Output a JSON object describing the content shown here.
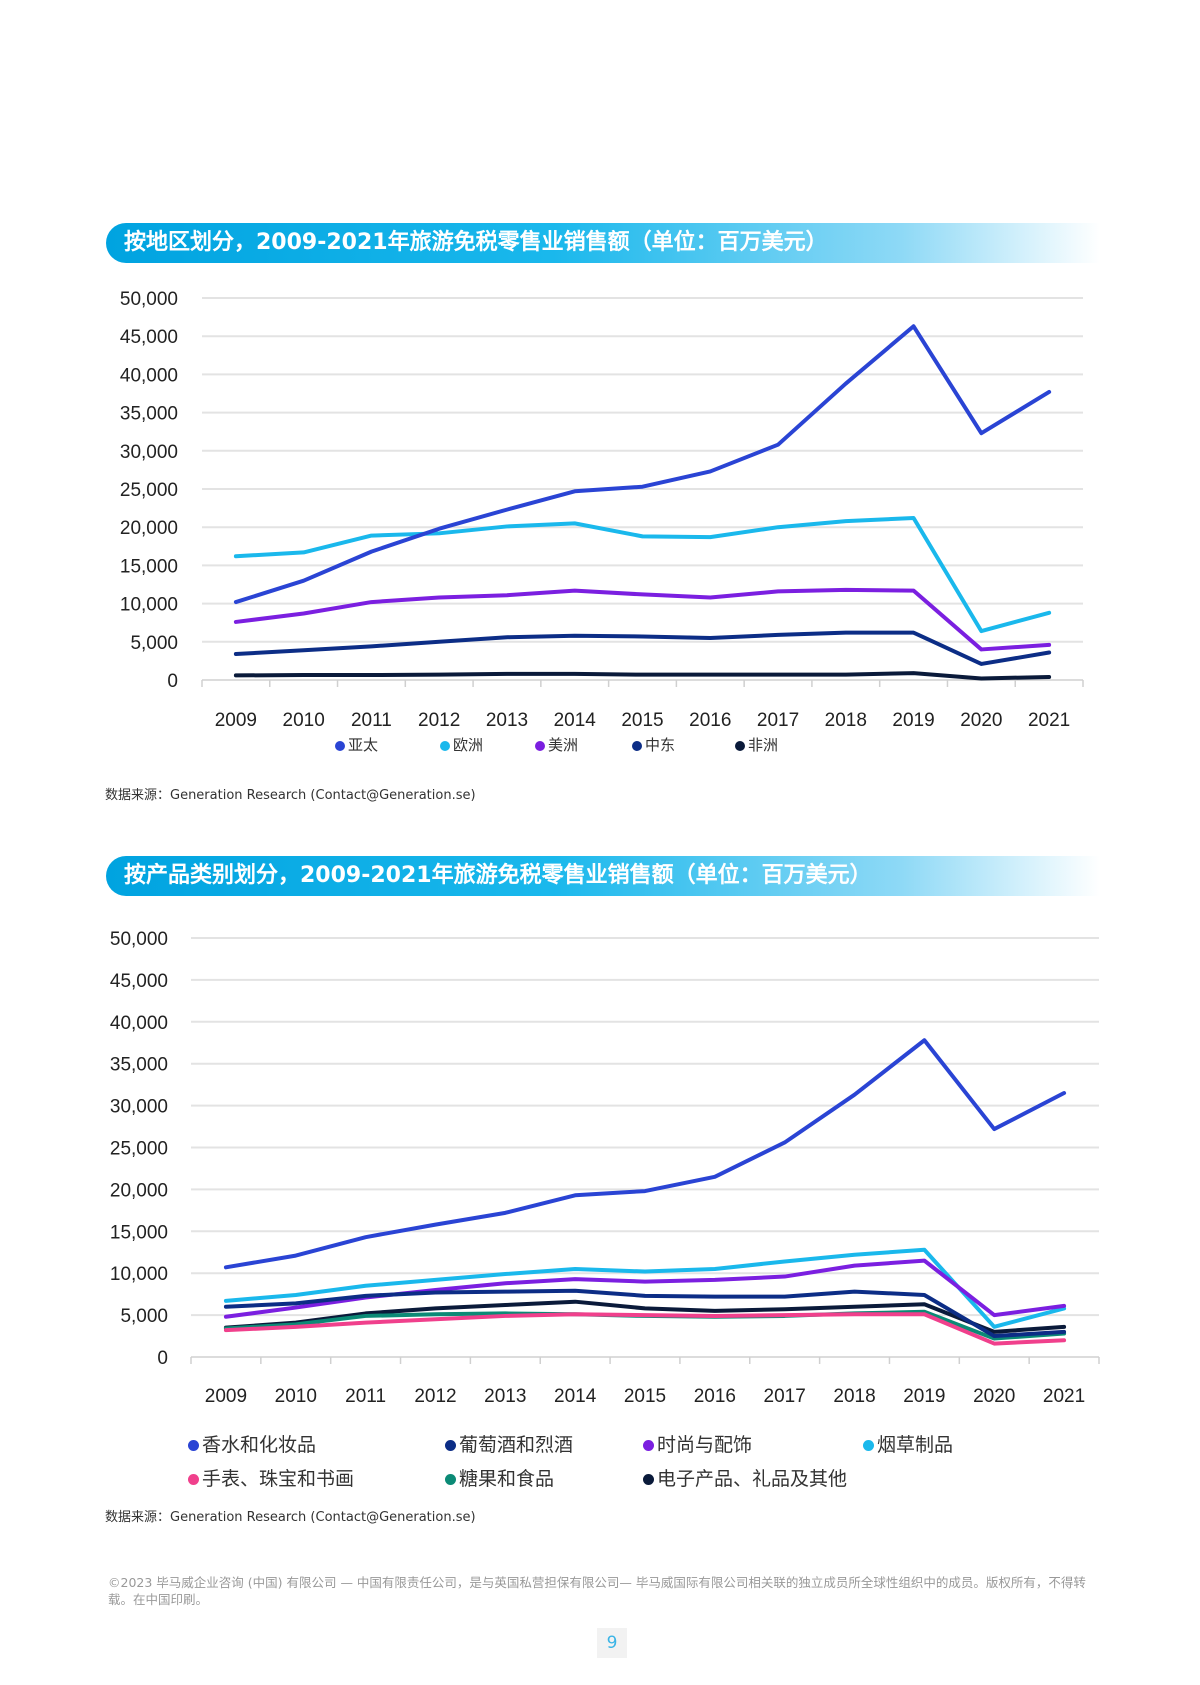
{
  "charts_titles": [
    "按地区划分，2009-2021年旅游免税零售业销售额（单位：百万美元）",
    "按产品类别划分，2009-2021年旅游免税零售业销售额（单位：百万美元）"
  ],
  "sources": [
    "数据来源：Generation Research (Contact@Generation.se)",
    "数据来源：Generation Research (Contact@Generation.se)"
  ],
  "footer": "©2023 毕马威企业咨询 (中国) 有限公司 — 中国有限责任公司，是与英国私营担保有限公司— 毕马威国际有限公司相关联的独立成员所全球性组织中的成员。版权所有，不得转载。在中国印刷。",
  "page_number": "9",
  "chart_data": [
    {
      "type": "line",
      "title": "按地区划分，2009-2021年旅游免税零售业销售额（单位：百万美元）",
      "categories": [
        "2009",
        "2010",
        "2011",
        "2012",
        "2013",
        "2014",
        "2015",
        "2016",
        "2017",
        "2018",
        "2019",
        "2020",
        "2021"
      ],
      "yticks": [
        "0",
        "5,000",
        "10,000",
        "15,000",
        "20,000",
        "25,000",
        "30,000",
        "35,000",
        "40,000",
        "45,000",
        "50,000"
      ],
      "ylim": [
        0,
        50000
      ],
      "grid": true,
      "legend": "bottom",
      "series": [
        {
          "name": "亚太",
          "color": "#2a44d4",
          "values": [
            10200,
            13000,
            16800,
            19800,
            22300,
            24700,
            25300,
            27300,
            30800,
            38800,
            46300,
            32300,
            37700
          ]
        },
        {
          "name": "欧洲",
          "color": "#1ab8ec",
          "values": [
            16200,
            16700,
            18900,
            19200,
            20100,
            20500,
            18800,
            18700,
            20000,
            20800,
            21200,
            6400,
            8800
          ]
        },
        {
          "name": "美洲",
          "color": "#7b1fe0",
          "values": [
            7600,
            8700,
            10200,
            10800,
            11100,
            11700,
            11200,
            10800,
            11600,
            11800,
            11700,
            4000,
            4600
          ]
        },
        {
          "name": "中东",
          "color": "#0c2d86",
          "values": [
            3400,
            3900,
            4400,
            5000,
            5600,
            5800,
            5700,
            5500,
            5900,
            6200,
            6200,
            2100,
            3600
          ]
        },
        {
          "name": "非洲",
          "color": "#0a1a3a",
          "values": [
            600,
            650,
            650,
            700,
            800,
            800,
            700,
            700,
            700,
            700,
            900,
            200,
            400
          ]
        }
      ]
    },
    {
      "type": "line",
      "title": "按产品类别划分，2009-2021年旅游免税零售业销售额（单位：百万美元）",
      "categories": [
        "2009",
        "2010",
        "2011",
        "2012",
        "2013",
        "2014",
        "2015",
        "2016",
        "2017",
        "2018",
        "2019",
        "2020",
        "2021"
      ],
      "yticks": [
        "0",
        "5,000",
        "10,000",
        "15,000",
        "20,000",
        "25,000",
        "30,000",
        "35,000",
        "40,000",
        "45,000",
        "50,000"
      ],
      "ylim": [
        0,
        50000
      ],
      "grid": true,
      "legend": "bottom",
      "series": [
        {
          "name": "香水和化妆品",
          "color": "#2a44d4",
          "values": [
            10700,
            12100,
            14300,
            15800,
            17200,
            19300,
            19800,
            21500,
            25600,
            31300,
            37800,
            27200,
            31500
          ]
        },
        {
          "name": "葡萄酒和烈酒",
          "color": "#0c2d86",
          "values": [
            6000,
            6400,
            7300,
            7700,
            7800,
            7900,
            7300,
            7200,
            7200,
            7800,
            7400,
            2500,
            3000
          ]
        },
        {
          "name": "时尚与配饰",
          "color": "#7b1fe0",
          "values": [
            4800,
            5900,
            7100,
            8000,
            8800,
            9300,
            9000,
            9200,
            9600,
            10900,
            11500,
            5000,
            6100
          ]
        },
        {
          "name": "烟草制品",
          "color": "#1ab8ec",
          "values": [
            6700,
            7400,
            8500,
            9200,
            9900,
            10500,
            10200,
            10500,
            11400,
            12200,
            12800,
            3600,
            5800
          ]
        },
        {
          "name": "手表、珠宝和书画",
          "color": "#f0408c",
          "values": [
            3200,
            3600,
            4100,
            4500,
            4900,
            5100,
            5000,
            4900,
            5000,
            5100,
            5100,
            1600,
            2000
          ]
        },
        {
          "name": "糖果和食品",
          "color": "#0b8a76",
          "values": [
            3400,
            3900,
            4900,
            5100,
            5200,
            5100,
            4900,
            4800,
            4900,
            5200,
            5400,
            2200,
            2800
          ]
        },
        {
          "name": "电子产品、礼品及其他",
          "color": "#0a1a3a",
          "values": [
            3500,
            4100,
            5200,
            5800,
            6200,
            6600,
            5800,
            5500,
            5700,
            6000,
            6300,
            3000,
            3600
          ]
        }
      ]
    }
  ]
}
